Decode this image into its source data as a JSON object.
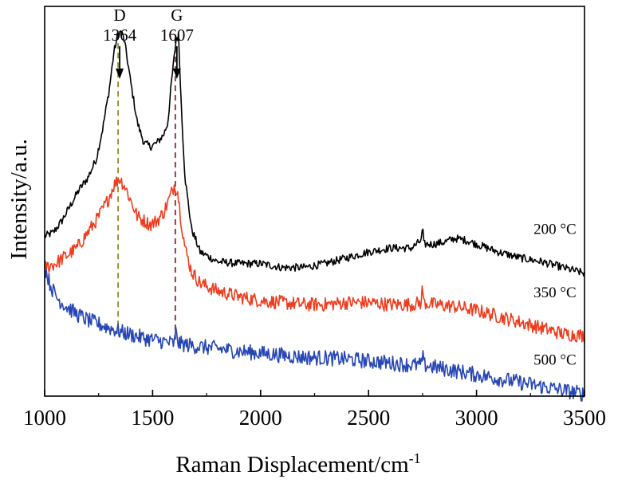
{
  "chart_data": {
    "type": "line",
    "xlabel": "Raman Displacement/cm",
    "xlabel_sup": "-1",
    "ylabel": "Intensity/a.u.",
    "xlim": [
      1000,
      3500
    ],
    "ylim": [
      0,
      1
    ],
    "x_ticks": [
      1000,
      1500,
      2000,
      2500,
      3000,
      3500
    ],
    "y_ticks_shown": false,
    "grid": false,
    "series": [
      {
        "name": "200 °C",
        "color": "#000000",
        "points": [
          [
            1000,
            0.41
          ],
          [
            1040,
            0.42
          ],
          [
            1080,
            0.45
          ],
          [
            1120,
            0.49
          ],
          [
            1160,
            0.53
          ],
          [
            1200,
            0.56
          ],
          [
            1240,
            0.61
          ],
          [
            1270,
            0.69
          ],
          [
            1300,
            0.79
          ],
          [
            1320,
            0.88
          ],
          [
            1340,
            0.93
          ],
          [
            1355,
            0.935
          ],
          [
            1370,
            0.91
          ],
          [
            1400,
            0.8
          ],
          [
            1430,
            0.7
          ],
          [
            1460,
            0.65
          ],
          [
            1490,
            0.64
          ],
          [
            1520,
            0.65
          ],
          [
            1550,
            0.67
          ],
          [
            1570,
            0.7
          ],
          [
            1590,
            0.82
          ],
          [
            1610,
            0.92
          ],
          [
            1620,
            0.92
          ],
          [
            1635,
            0.72
          ],
          [
            1650,
            0.56
          ],
          [
            1680,
            0.43
          ],
          [
            1720,
            0.37
          ],
          [
            1800,
            0.345
          ],
          [
            1900,
            0.34
          ],
          [
            2000,
            0.34
          ],
          [
            2100,
            0.33
          ],
          [
            2200,
            0.33
          ],
          [
            2300,
            0.34
          ],
          [
            2400,
            0.355
          ],
          [
            2500,
            0.37
          ],
          [
            2600,
            0.38
          ],
          [
            2700,
            0.38
          ],
          [
            2745,
            0.4
          ],
          [
            2750,
            0.44
          ],
          [
            2755,
            0.39
          ],
          [
            2800,
            0.39
          ],
          [
            2850,
            0.395
          ],
          [
            2900,
            0.405
          ],
          [
            2950,
            0.4
          ],
          [
            3000,
            0.39
          ],
          [
            3100,
            0.37
          ],
          [
            3200,
            0.355
          ],
          [
            3300,
            0.345
          ],
          [
            3400,
            0.33
          ],
          [
            3500,
            0.315
          ]
        ]
      },
      {
        "name": "350 °C",
        "color": "#f03c1e",
        "points": [
          [
            1000,
            0.33
          ],
          [
            1050,
            0.34
          ],
          [
            1100,
            0.36
          ],
          [
            1150,
            0.38
          ],
          [
            1200,
            0.42
          ],
          [
            1250,
            0.46
          ],
          [
            1290,
            0.5
          ],
          [
            1320,
            0.54
          ],
          [
            1345,
            0.56
          ],
          [
            1370,
            0.54
          ],
          [
            1400,
            0.5
          ],
          [
            1430,
            0.46
          ],
          [
            1460,
            0.45
          ],
          [
            1490,
            0.44
          ],
          [
            1520,
            0.45
          ],
          [
            1550,
            0.47
          ],
          [
            1580,
            0.51
          ],
          [
            1600,
            0.54
          ],
          [
            1615,
            0.53
          ],
          [
            1630,
            0.46
          ],
          [
            1650,
            0.38
          ],
          [
            1680,
            0.32
          ],
          [
            1720,
            0.29
          ],
          [
            1800,
            0.27
          ],
          [
            1900,
            0.255
          ],
          [
            2000,
            0.245
          ],
          [
            2100,
            0.24
          ],
          [
            2200,
            0.235
          ],
          [
            2300,
            0.235
          ],
          [
            2400,
            0.24
          ],
          [
            2500,
            0.24
          ],
          [
            2600,
            0.235
          ],
          [
            2700,
            0.235
          ],
          [
            2745,
            0.24
          ],
          [
            2750,
            0.29
          ],
          [
            2755,
            0.24
          ],
          [
            2800,
            0.235
          ],
          [
            2900,
            0.23
          ],
          [
            3000,
            0.22
          ],
          [
            3100,
            0.205
          ],
          [
            3200,
            0.19
          ],
          [
            3300,
            0.175
          ],
          [
            3400,
            0.16
          ],
          [
            3500,
            0.155
          ]
        ]
      },
      {
        "name": "500 °C",
        "color": "#2646b4",
        "points": [
          [
            1000,
            0.33
          ],
          [
            1030,
            0.28
          ],
          [
            1060,
            0.25
          ],
          [
            1100,
            0.23
          ],
          [
            1150,
            0.21
          ],
          [
            1200,
            0.195
          ],
          [
            1250,
            0.185
          ],
          [
            1300,
            0.175
          ],
          [
            1350,
            0.165
          ],
          [
            1400,
            0.158
          ],
          [
            1450,
            0.15
          ],
          [
            1500,
            0.145
          ],
          [
            1550,
            0.14
          ],
          [
            1600,
            0.135
          ],
          [
            1610,
            0.17
          ],
          [
            1620,
            0.135
          ],
          [
            1700,
            0.128
          ],
          [
            1800,
            0.122
          ],
          [
            1900,
            0.115
          ],
          [
            2000,
            0.11
          ],
          [
            2100,
            0.105
          ],
          [
            2200,
            0.1
          ],
          [
            2300,
            0.098
          ],
          [
            2400,
            0.095
          ],
          [
            2500,
            0.09
          ],
          [
            2600,
            0.085
          ],
          [
            2700,
            0.08
          ],
          [
            2745,
            0.08
          ],
          [
            2750,
            0.11
          ],
          [
            2755,
            0.08
          ],
          [
            2800,
            0.075
          ],
          [
            2900,
            0.065
          ],
          [
            3000,
            0.055
          ],
          [
            3100,
            0.045
          ],
          [
            3200,
            0.035
          ],
          [
            3300,
            0.025
          ],
          [
            3400,
            0.015
          ],
          [
            3500,
            0.005
          ]
        ]
      }
    ],
    "annotations": [
      {
        "letter": "D",
        "value": "1364",
        "x": 1340,
        "line_y_top": 0.93,
        "line_y_bottom": 0.16,
        "line_color": "#8c8c2a"
      },
      {
        "letter": "G",
        "value": "1607",
        "x": 1605,
        "line_y_top": 0.92,
        "line_y_bottom": 0.14,
        "line_color": "#8b2a2a"
      }
    ],
    "series_labels": [
      {
        "text": "200 °C",
        "x": 3050,
        "y": 0.43
      },
      {
        "text": "350 °C",
        "x": 3050,
        "y": 0.268
      },
      {
        "text": "500 °C",
        "x": 3050,
        "y": 0.095
      }
    ]
  }
}
